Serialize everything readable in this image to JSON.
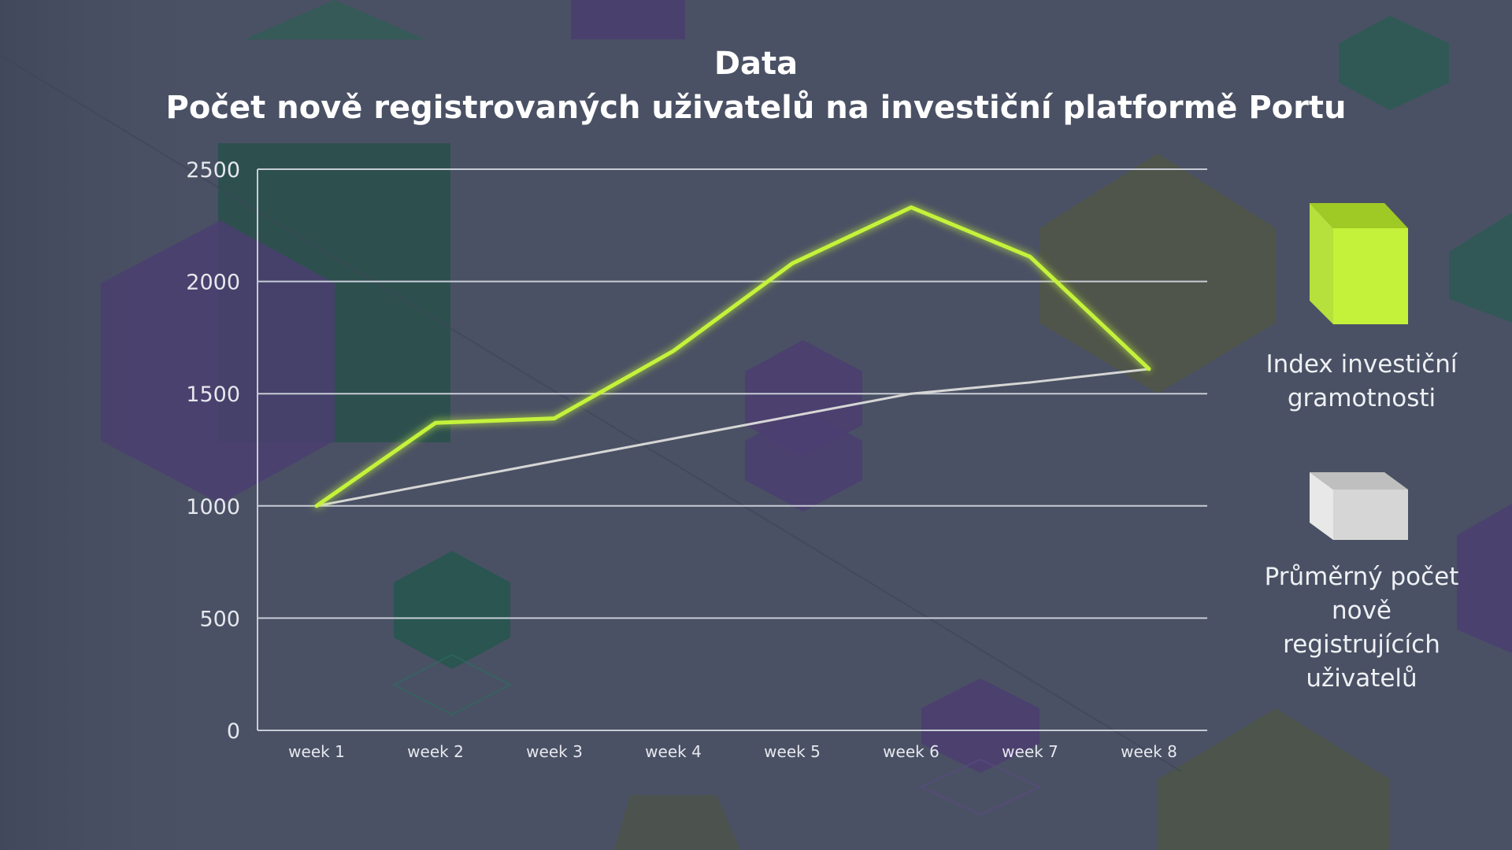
{
  "title": "Data",
  "subtitle": "Počet nově registrovaných uživatelů na investiční platformě Portu",
  "colors": {
    "background": "#4a5164",
    "series_index": "#c4f23a",
    "series_average": "#d6d6d6",
    "grid": "#c8ccd6"
  },
  "chart_data": {
    "type": "line",
    "title": "Počet nově registrovaných uživatelů na investiční platformě Portu",
    "categories": [
      "week 1",
      "week 2",
      "week 3",
      "week 4",
      "week 5",
      "week 6",
      "week 7",
      "week 8"
    ],
    "ylim": [
      0,
      2500
    ],
    "yticks": [
      "0",
      "500",
      "1000",
      "1500",
      "2000",
      "2500"
    ],
    "grid": true,
    "legend_position": "right",
    "series": [
      {
        "name": "Index investiční gramotnosti",
        "values": [
          1000,
          1370,
          1390,
          1690,
          2080,
          2330,
          2110,
          1610
        ]
      },
      {
        "name": "Průměrný počet nově registrujících uživatelů",
        "values": [
          1000,
          1100,
          1200,
          1300,
          1400,
          1500,
          1550,
          1610
        ]
      }
    ]
  }
}
